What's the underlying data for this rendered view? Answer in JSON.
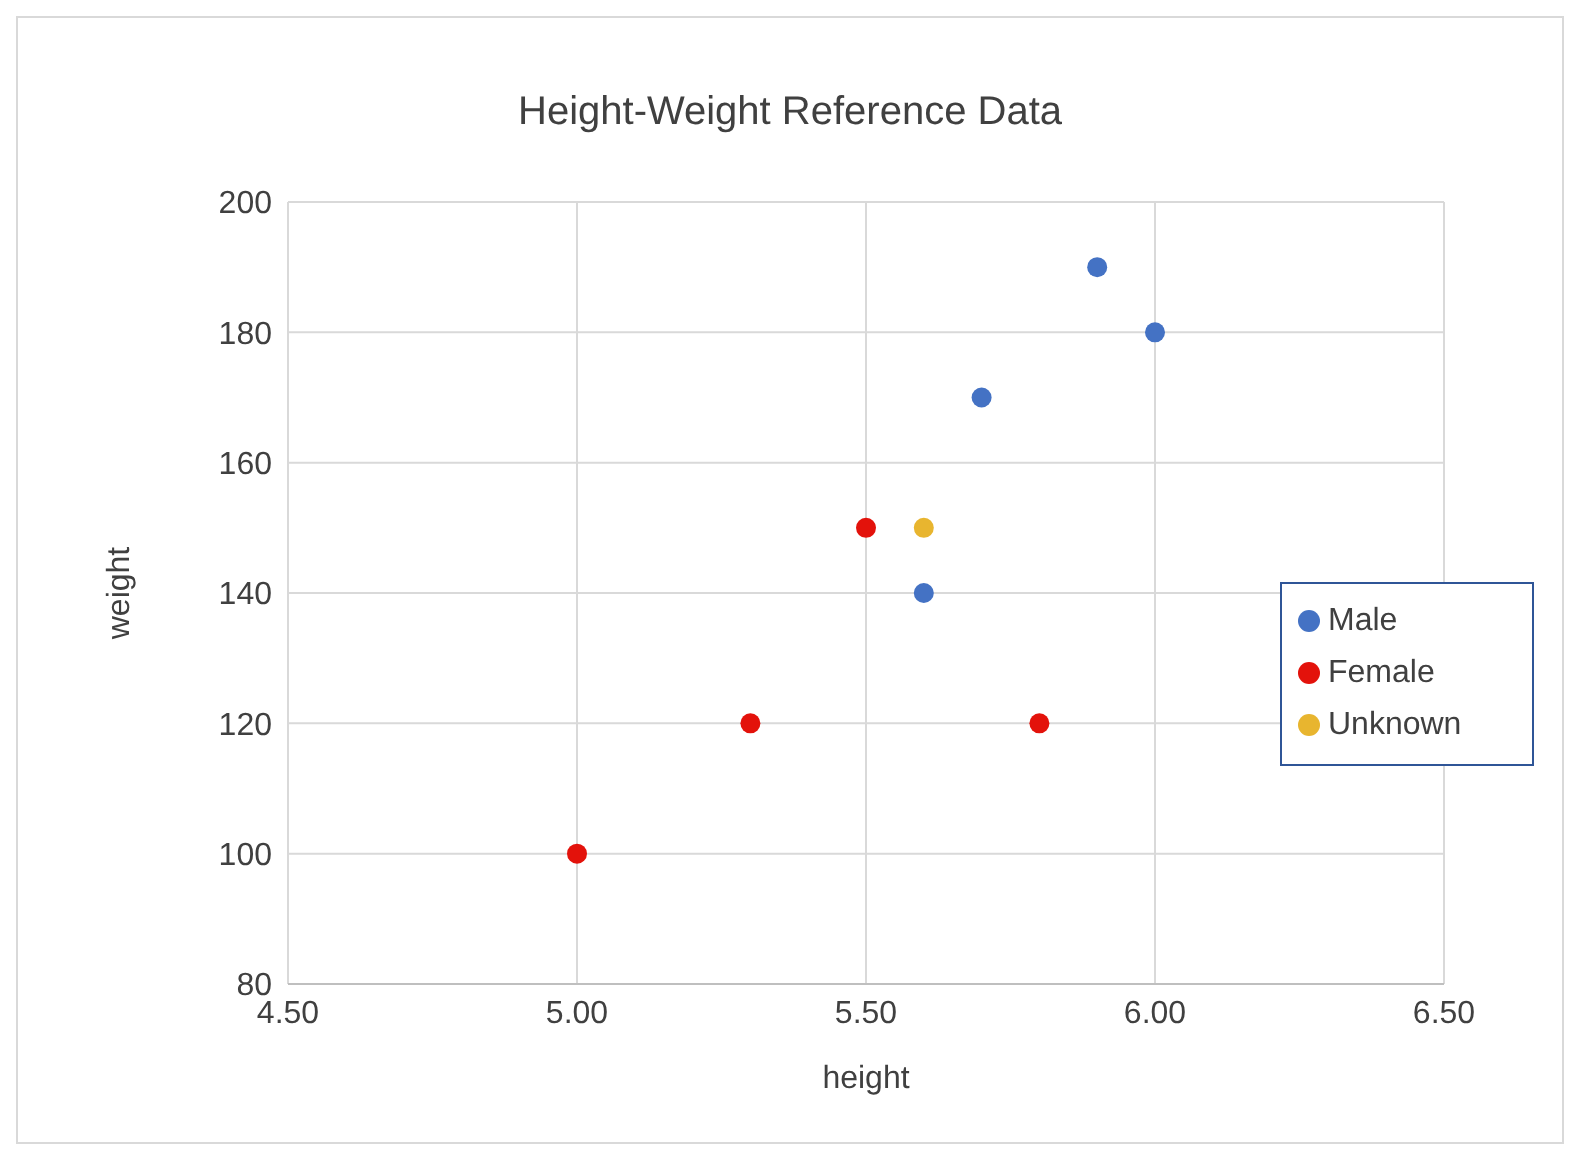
{
  "chart_data": {
    "type": "scatter",
    "title": "Height-Weight Reference Data",
    "xlabel": "height",
    "ylabel": "weight",
    "xlim": [
      4.5,
      6.5
    ],
    "xticks": [
      {
        "value": 4.5,
        "label": "4.50"
      },
      {
        "value": 5,
        "label": "5.00"
      },
      {
        "value": 5.5,
        "label": "5.50"
      },
      {
        "value": 6,
        "label": "6.00"
      },
      {
        "value": 6.5,
        "label": "6.50"
      }
    ],
    "ylim": [
      80,
      200
    ],
    "yticks": [
      80,
      100,
      120,
      140,
      160,
      180,
      200
    ],
    "grid": true,
    "legend": "right",
    "marker": "circle",
    "series": [
      {
        "name": "Male",
        "color": "#4472c4",
        "x": [
          5.6,
          5.7,
          5.9,
          6.0
        ],
        "values": [
          140,
          170,
          190,
          180
        ]
      },
      {
        "name": "Female",
        "color": "#e3120b",
        "x": [
          5.0,
          5.3,
          5.5,
          5.8
        ],
        "values": [
          100,
          120,
          150,
          120
        ]
      },
      {
        "name": "Unknown",
        "color": "#e8b52f",
        "x": [
          5.6
        ],
        "values": [
          150
        ]
      }
    ]
  }
}
